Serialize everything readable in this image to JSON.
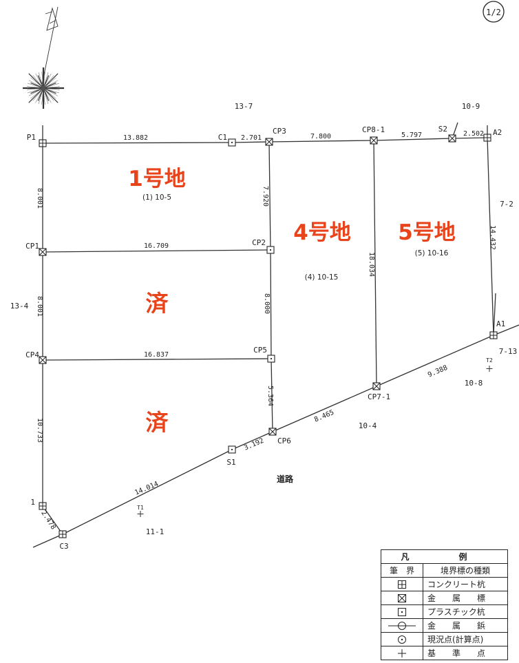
{
  "page_number": "1/2",
  "markers": [
    {
      "id": "P1",
      "label": "P1",
      "type": "concrete"
    },
    {
      "id": "C1",
      "label": "C1",
      "type": "plastic"
    },
    {
      "id": "CP3",
      "label": "CP3",
      "type": "metal"
    },
    {
      "id": "CP8-1",
      "label": "CP8-1",
      "type": "metal"
    },
    {
      "id": "S2",
      "label": "S2",
      "type": "metal"
    },
    {
      "id": "A2",
      "label": "A2",
      "type": "concrete"
    },
    {
      "id": "CP1",
      "label": "CP1",
      "type": "metal"
    },
    {
      "id": "CP2",
      "label": "CP2",
      "type": "plastic"
    },
    {
      "id": "CP4",
      "label": "CP4",
      "type": "metal"
    },
    {
      "id": "CP5",
      "label": "CP5",
      "type": "plastic"
    },
    {
      "id": "A1",
      "label": "A1",
      "type": "concrete"
    },
    {
      "id": "CP7-1",
      "label": "CP7-1",
      "type": "metal"
    },
    {
      "id": "CP6",
      "label": "CP6",
      "type": "metal"
    },
    {
      "id": "S1",
      "label": "S1",
      "type": "plastic"
    },
    {
      "id": "M1",
      "label": "1",
      "type": "concrete"
    },
    {
      "id": "C3",
      "label": "C3",
      "type": "concrete"
    }
  ],
  "segments": [
    {
      "from": "P1",
      "to": "C1",
      "length": "13.882"
    },
    {
      "from": "C1",
      "to": "CP3",
      "length": "2.701"
    },
    {
      "from": "CP3",
      "to": "CP8-1",
      "length": "7.800"
    },
    {
      "from": "CP8-1",
      "to": "S2",
      "length": "5.797"
    },
    {
      "from": "S2",
      "to": "A2",
      "length": "2.502"
    },
    {
      "from": "P1",
      "to": "CP1",
      "length": "8.001"
    },
    {
      "from": "CP1",
      "to": "CP4",
      "length": "8.001"
    },
    {
      "from": "CP4",
      "to": "M1",
      "length": "10.733"
    },
    {
      "from": "M1",
      "to": "C3",
      "length": "2.478"
    },
    {
      "from": "CP1",
      "to": "CP2",
      "length": "16.709"
    },
    {
      "from": "CP4",
      "to": "CP5",
      "length": "16.837"
    },
    {
      "from": "CP3",
      "to": "CP2",
      "length": "7.920"
    },
    {
      "from": "CP2",
      "to": "CP5",
      "length": "8.000"
    },
    {
      "from": "CP5",
      "to": "CP6",
      "length": "5.364"
    },
    {
      "from": "CP8-1",
      "to": "CP7-1",
      "length": "18.034"
    },
    {
      "from": "A2",
      "to": "A1",
      "length": "14.432"
    },
    {
      "from": "C3",
      "to": "S1",
      "length": "14.014"
    },
    {
      "from": "S1",
      "to": "CP6",
      "length": "3.192"
    },
    {
      "from": "CP6",
      "to": "CP7-1",
      "length": "8.465"
    },
    {
      "from": "CP7-1",
      "to": "A1",
      "length": "9.388"
    }
  ],
  "lots": [
    {
      "id": "lot1",
      "title": "1号地",
      "number": "(1) 10-5"
    },
    {
      "id": "lot4",
      "title": "4号地",
      "number": "(4) 10-15"
    },
    {
      "id": "lot5",
      "title": "5号地",
      "number": "(5) 10-16"
    }
  ],
  "sold_marks": [
    "済",
    "済"
  ],
  "neighbors": [
    "13-7",
    "10-9",
    "7-2",
    "13-4",
    "7-13",
    "10-8",
    "10-4",
    "11-1"
  ],
  "road_label": "道路",
  "benchmarks": [
    {
      "label": "T1"
    },
    {
      "label": "T2"
    }
  ],
  "legend": {
    "title": "凡　例",
    "col1": "筆　界",
    "col2": "境界標の種類",
    "rows": [
      {
        "symbol": "concrete",
        "label": "コンクリート杭"
      },
      {
        "symbol": "metal",
        "label": "金　　属　　標"
      },
      {
        "symbol": "plastic",
        "label": "プラスチック杭"
      },
      {
        "symbol": "rivet",
        "label": "金　　属　　鋲"
      },
      {
        "symbol": "current",
        "label": "現況点(計算点)"
      },
      {
        "symbol": "benchmark",
        "label": "基　　準　　点"
      }
    ]
  },
  "colors": {
    "sold_red": "#e8441c",
    "line": "#333333"
  }
}
